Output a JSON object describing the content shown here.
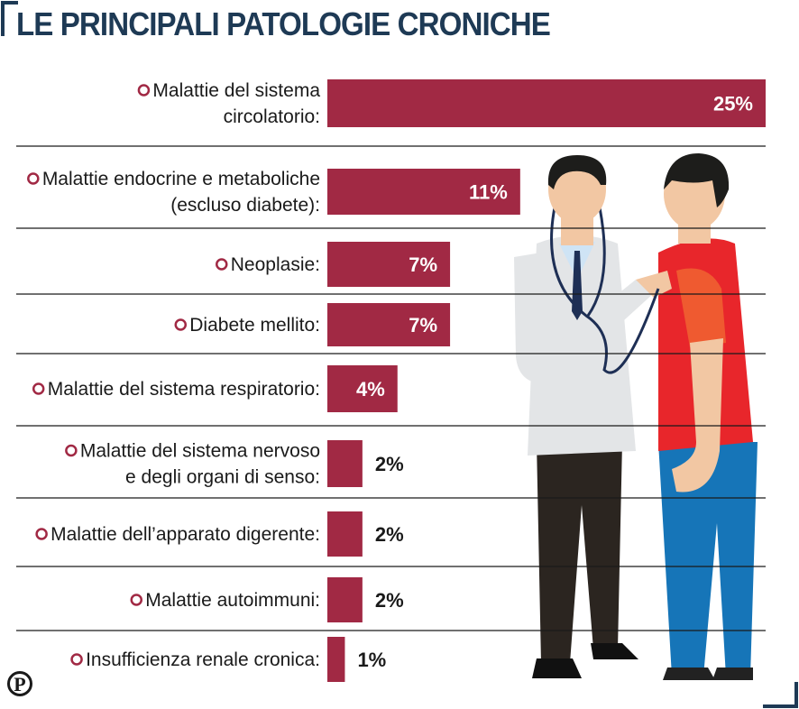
{
  "title": "LE PRINCIPALI PATOLOGIE CRONICHE",
  "logo_letter": "P",
  "colors": {
    "bar": "#a12944",
    "title": "#1e3a55",
    "label_inside": "#ffffff",
    "label_outside": "#1a1a1a"
  },
  "chart_data": {
    "type": "bar",
    "orientation": "horizontal",
    "value_suffix": "%",
    "xlim": [
      0,
      25
    ],
    "grid": false,
    "categories": [
      [
        "Malattie del sistema",
        "circolatorio:"
      ],
      [
        "Malattie endocrine e metaboliche",
        "(escluso diabete):"
      ],
      [
        "Neoplasie:"
      ],
      [
        "Diabete mellito:"
      ],
      [
        "Malattie del sistema respiratorio:"
      ],
      [
        "Malattie del sistema nervoso",
        "e degli organi di senso:"
      ],
      [
        "Malattie dell’apparato digerente:"
      ],
      [
        "Malattie autoimmuni:"
      ],
      [
        "Insufficienza renale cronica:"
      ]
    ],
    "values": [
      25,
      11,
      7,
      7,
      4,
      2,
      2,
      2,
      1
    ],
    "value_labels": [
      "25%",
      "11%",
      "7%",
      "7%",
      "4%",
      "2%",
      "2%",
      "2%",
      "1%"
    ]
  }
}
